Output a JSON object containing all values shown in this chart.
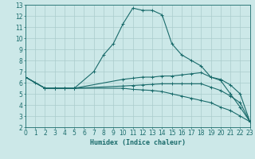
{
  "xlabel": "Humidex (Indice chaleur)",
  "xlim": [
    0,
    23
  ],
  "ylim": [
    2,
    13
  ],
  "xticks": [
    0,
    1,
    2,
    3,
    4,
    5,
    6,
    7,
    8,
    9,
    10,
    11,
    12,
    13,
    14,
    15,
    16,
    17,
    18,
    19,
    20,
    21,
    22,
    23
  ],
  "yticks": [
    2,
    3,
    4,
    5,
    6,
    7,
    8,
    9,
    10,
    11,
    12,
    13
  ],
  "bg_color": "#cce8e8",
  "grid_color": "#aacccc",
  "line_color": "#1a6b6b",
  "curves": [
    {
      "x": [
        0,
        1,
        2,
        3,
        4,
        5,
        7,
        8,
        9,
        10,
        11,
        12,
        13,
        14,
        15,
        16,
        17,
        18,
        19,
        20,
        21,
        22,
        23
      ],
      "y": [
        6.5,
        6.0,
        5.5,
        5.5,
        5.5,
        5.5,
        7.0,
        8.5,
        9.5,
        11.3,
        12.7,
        12.5,
        12.5,
        12.1,
        9.5,
        8.5,
        8.0,
        7.5,
        6.5,
        6.2,
        5.0,
        3.8,
        2.5
      ]
    },
    {
      "x": [
        0,
        2,
        3,
        4,
        5,
        10,
        11,
        12,
        13,
        14,
        15,
        16,
        17,
        18,
        19,
        20,
        21,
        22,
        23
      ],
      "y": [
        6.5,
        5.5,
        5.5,
        5.5,
        5.5,
        6.3,
        6.4,
        6.5,
        6.5,
        6.6,
        6.6,
        6.7,
        6.8,
        6.9,
        6.5,
        6.3,
        5.8,
        5.0,
        2.5
      ]
    },
    {
      "x": [
        0,
        2,
        3,
        4,
        5,
        10,
        11,
        12,
        13,
        14,
        15,
        16,
        17,
        18,
        19,
        20,
        21,
        22,
        23
      ],
      "y": [
        6.5,
        5.5,
        5.5,
        5.5,
        5.5,
        5.7,
        5.75,
        5.8,
        5.85,
        5.9,
        5.9,
        5.9,
        5.9,
        5.9,
        5.6,
        5.3,
        4.8,
        4.2,
        2.5
      ]
    },
    {
      "x": [
        0,
        2,
        3,
        4,
        5,
        10,
        11,
        12,
        13,
        14,
        15,
        16,
        17,
        18,
        19,
        20,
        21,
        22,
        23
      ],
      "y": [
        6.5,
        5.5,
        5.5,
        5.5,
        5.5,
        5.5,
        5.4,
        5.35,
        5.3,
        5.2,
        5.0,
        4.8,
        4.6,
        4.4,
        4.2,
        3.8,
        3.5,
        3.0,
        2.5
      ]
    }
  ]
}
